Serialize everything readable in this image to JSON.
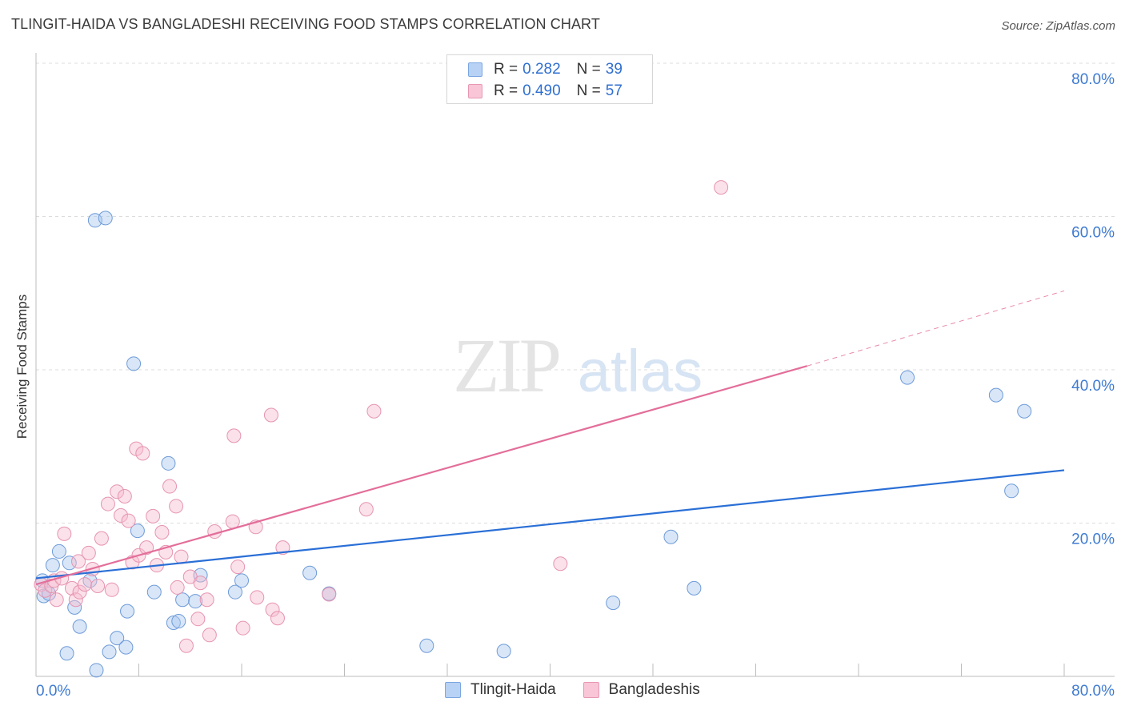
{
  "header": {
    "title": "TLINGIT-HAIDA VS BANGLADESHI RECEIVING FOOD STAMPS CORRELATION CHART",
    "source": "Source: ZipAtlas.com"
  },
  "watermark": {
    "zip": "ZIP",
    "atlas": "atlas"
  },
  "legend": {
    "rows": [
      {
        "r_label": "R =",
        "r_value": "0.282",
        "n_label": "N =",
        "n_value": "39",
        "fill": "#b8d2f5",
        "stroke": "#7aa6e0"
      },
      {
        "r_label": "R =",
        "r_value": "0.490",
        "n_label": "N =",
        "n_value": "57",
        "fill": "#f8c6d6",
        "stroke": "#e898b3"
      }
    ]
  },
  "bottom_legend": {
    "items": [
      {
        "label": "Tlingit-Haida",
        "fill": "#b8d2f5",
        "stroke": "#7aa6e0"
      },
      {
        "label": "Bangladeshis",
        "fill": "#f8c6d6",
        "stroke": "#e898b3"
      }
    ]
  },
  "colors": {
    "blue_line": "#2a6fd6",
    "pink_line": "#e36e9a",
    "blue_point_fill": "rgba(168,199,240,0.45)",
    "blue_point_stroke": "#6e9bd8",
    "pink_point_fill": "rgba(246,188,207,0.45)",
    "pink_point_stroke": "#e694b1",
    "tick_label": "#3f7bd1",
    "grid": "#dcdcdc"
  },
  "chart_data": {
    "type": "scatter",
    "title": "TLINGIT-HAIDA VS BANGLADESHI RECEIVING FOOD STAMPS CORRELATION CHART",
    "xlabel": "",
    "ylabel": "Receiving Food Stamps",
    "xlim": [
      0,
      80
    ],
    "ylim": [
      0,
      80
    ],
    "x_tick_labels": [
      "0.0%",
      "80.0%"
    ],
    "y_ticks": [
      20,
      40,
      60,
      80
    ],
    "y_tick_labels": [
      "20.0%",
      "40.0%",
      "60.0%",
      "80.0%"
    ],
    "grid": "horizontal dashed",
    "legend_position": "top-center",
    "series": [
      {
        "name": "Tlingit-Haida",
        "color": "#6e9bd8",
        "points": [
          [
            0.5,
            12.5
          ],
          [
            0.6,
            10.5
          ],
          [
            1.0,
            10.8
          ],
          [
            1.3,
            14.5
          ],
          [
            1.8,
            16.3
          ],
          [
            2.4,
            3.0
          ],
          [
            2.6,
            14.8
          ],
          [
            3.0,
            9.0
          ],
          [
            3.4,
            6.5
          ],
          [
            4.2,
            12.5
          ],
          [
            4.7,
            0.8
          ],
          [
            4.6,
            59.5
          ],
          [
            5.4,
            59.8
          ],
          [
            5.7,
            3.2
          ],
          [
            6.3,
            5.0
          ],
          [
            7.0,
            3.8
          ],
          [
            7.1,
            8.5
          ],
          [
            7.6,
            40.8
          ],
          [
            7.9,
            19.0
          ],
          [
            9.2,
            11.0
          ],
          [
            10.3,
            27.8
          ],
          [
            10.7,
            7.0
          ],
          [
            11.1,
            7.2
          ],
          [
            11.4,
            10.0
          ],
          [
            12.4,
            9.8
          ],
          [
            12.8,
            13.2
          ],
          [
            15.5,
            11.0
          ],
          [
            16.0,
            12.5
          ],
          [
            21.3,
            13.5
          ],
          [
            22.8,
            10.8
          ],
          [
            30.4,
            4.0
          ],
          [
            36.4,
            3.3
          ],
          [
            44.9,
            9.6
          ],
          [
            49.4,
            18.2
          ],
          [
            51.2,
            11.5
          ],
          [
            67.8,
            39.0
          ],
          [
            74.7,
            36.7
          ],
          [
            75.9,
            24.2
          ],
          [
            76.9,
            34.6
          ]
        ],
        "trend": {
          "x": [
            0,
            80
          ],
          "y": [
            12.8,
            26.9
          ]
        }
      },
      {
        "name": "Bangladeshis",
        "color": "#e694b1",
        "points": [
          [
            0.4,
            12.0
          ],
          [
            0.7,
            11.2
          ],
          [
            1.2,
            11.8
          ],
          [
            1.4,
            12.5
          ],
          [
            1.6,
            10.0
          ],
          [
            2.0,
            12.8
          ],
          [
            2.2,
            18.6
          ],
          [
            2.8,
            11.5
          ],
          [
            3.1,
            10.0
          ],
          [
            3.3,
            15.0
          ],
          [
            3.4,
            11.0
          ],
          [
            3.8,
            12.0
          ],
          [
            4.1,
            16.1
          ],
          [
            4.4,
            14.0
          ],
          [
            4.8,
            11.8
          ],
          [
            5.1,
            18.0
          ],
          [
            5.6,
            22.5
          ],
          [
            5.9,
            11.3
          ],
          [
            6.3,
            24.1
          ],
          [
            6.6,
            21.0
          ],
          [
            6.9,
            23.5
          ],
          [
            7.2,
            20.3
          ],
          [
            7.5,
            14.9
          ],
          [
            7.8,
            29.7
          ],
          [
            8.0,
            15.8
          ],
          [
            8.3,
            29.1
          ],
          [
            8.6,
            16.8
          ],
          [
            9.1,
            20.9
          ],
          [
            9.4,
            14.5
          ],
          [
            9.8,
            18.8
          ],
          [
            10.1,
            16.2
          ],
          [
            10.4,
            24.8
          ],
          [
            10.9,
            22.2
          ],
          [
            11.0,
            11.6
          ],
          [
            11.3,
            15.6
          ],
          [
            11.7,
            4.0
          ],
          [
            12.0,
            13.0
          ],
          [
            12.6,
            7.5
          ],
          [
            12.8,
            12.2
          ],
          [
            13.3,
            10.0
          ],
          [
            13.5,
            5.4
          ],
          [
            13.9,
            18.9
          ],
          [
            15.3,
            20.2
          ],
          [
            15.4,
            31.4
          ],
          [
            15.7,
            14.3
          ],
          [
            16.1,
            6.3
          ],
          [
            17.1,
            19.5
          ],
          [
            17.2,
            10.3
          ],
          [
            18.4,
            8.7
          ],
          [
            18.3,
            34.1
          ],
          [
            18.8,
            7.6
          ],
          [
            19.2,
            16.8
          ],
          [
            22.8,
            10.7
          ],
          [
            25.7,
            21.8
          ],
          [
            26.3,
            34.6
          ],
          [
            40.8,
            14.7
          ],
          [
            53.3,
            63.8
          ]
        ],
        "trend": {
          "x": [
            0,
            60
          ],
          "y": [
            12.0,
            40.5
          ]
        },
        "trend_dashed_extension": {
          "x": [
            60,
            80
          ],
          "y": [
            40.5,
            50.3
          ]
        }
      }
    ]
  }
}
